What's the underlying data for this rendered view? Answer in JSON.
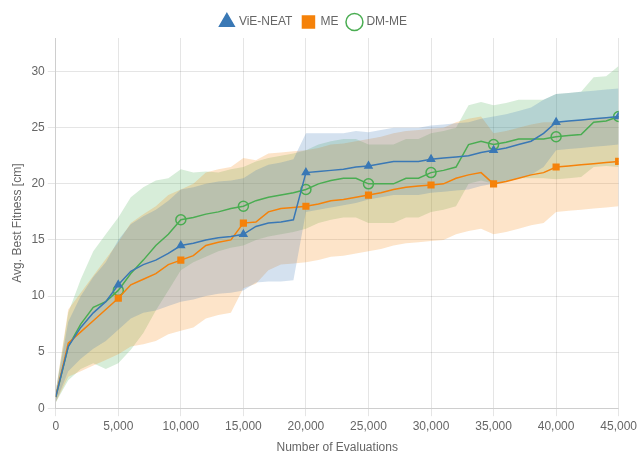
{
  "chart_data": {
    "type": "line",
    "xlabel": "Number of Evaluations",
    "ylabel": "Avg. Best Fitness [cm]",
    "x": [
      0,
      1000,
      2000,
      3000,
      4000,
      5000,
      6000,
      7000,
      8000,
      9000,
      10000,
      11000,
      12000,
      13000,
      14000,
      15000,
      16000,
      17000,
      18000,
      19000,
      20000,
      21000,
      22000,
      23000,
      24000,
      25000,
      26000,
      27000,
      28000,
      29000,
      30000,
      31000,
      32000,
      33000,
      34000,
      35000,
      36000,
      37000,
      38000,
      39000,
      40000,
      41000,
      42000,
      43000,
      44000,
      45000
    ],
    "xlim": [
      0,
      45000
    ],
    "ylim": [
      0,
      33
    ],
    "xticks": [
      0,
      {
        "value": 5000,
        "label": "5,000"
      },
      {
        "value": 10000,
        "label": "10,000"
      },
      {
        "value": 15000,
        "label": "15,000"
      },
      {
        "value": 20000,
        "label": "20,000"
      },
      {
        "value": 25000,
        "label": "25,000"
      },
      {
        "value": 30000,
        "label": "30,000"
      },
      {
        "value": 35000,
        "label": "35,000"
      },
      {
        "value": 40000,
        "label": "40,000"
      },
      {
        "value": 45000,
        "label": "45,000"
      }
    ],
    "yticks": [
      0,
      5,
      10,
      15,
      20,
      25,
      30
    ],
    "grid": true,
    "legend": "top",
    "series": [
      {
        "name": "ViE-NEAT",
        "color": "#3a78b5",
        "marker": "triangle",
        "values": [
          1.0,
          5.5,
          7.2,
          8.5,
          9.5,
          11.0,
          12.2,
          12.8,
          13.2,
          13.8,
          14.5,
          14.7,
          15.0,
          15.2,
          15.3,
          15.5,
          16.2,
          16.5,
          16.6,
          16.8,
          21.0,
          21.1,
          21.2,
          21.3,
          21.5,
          21.6,
          21.8,
          22.0,
          22.0,
          22.0,
          22.2,
          22.3,
          22.4,
          22.5,
          22.8,
          23.0,
          23.2,
          23.5,
          23.8,
          24.5,
          25.5,
          25.6,
          25.7,
          25.8,
          25.9,
          26.0
        ],
        "std": [
          0.5,
          2.2,
          2.8,
          3.2,
          3.5,
          4.0,
          4.2,
          4.3,
          4.5,
          4.7,
          5.0,
          5.0,
          5.0,
          5.0,
          5.0,
          5.0,
          5.0,
          5.2,
          5.3,
          5.4,
          3.5,
          3.4,
          3.3,
          3.2,
          3.2,
          3.0,
          3.0,
          3.0,
          3.0,
          3.0,
          3.0,
          3.0,
          3.0,
          3.0,
          3.0,
          3.0,
          3.0,
          3.0,
          3.0,
          3.0,
          2.5,
          2.5,
          2.5,
          2.5,
          2.5,
          2.5
        ]
      },
      {
        "name": "ME",
        "color": "#f5820a",
        "marker": "square",
        "values": [
          1.0,
          5.8,
          6.8,
          7.8,
          8.8,
          9.8,
          11.0,
          11.5,
          12.0,
          12.8,
          13.2,
          13.6,
          14.5,
          14.8,
          15.0,
          16.5,
          16.6,
          17.5,
          17.8,
          17.9,
          18.0,
          18.2,
          18.5,
          18.6,
          18.8,
          19.0,
          19.2,
          19.5,
          19.7,
          19.8,
          19.9,
          20.0,
          20.5,
          20.8,
          21.0,
          20.0,
          20.2,
          20.5,
          20.8,
          21.0,
          21.5,
          21.6,
          21.7,
          21.8,
          21.9,
          22.0
        ],
        "std": [
          0.5,
          3.0,
          3.5,
          4.0,
          4.5,
          5.0,
          5.5,
          5.8,
          6.0,
          6.2,
          6.3,
          6.4,
          6.5,
          6.5,
          6.5,
          5.8,
          5.5,
          5.2,
          5.0,
          5.0,
          5.0,
          5.0,
          5.0,
          5.0,
          5.0,
          5.0,
          5.0,
          5.0,
          5.0,
          5.0,
          5.0,
          5.0,
          5.0,
          5.0,
          5.0,
          4.5,
          4.5,
          4.5,
          4.5,
          4.5,
          4.0,
          4.0,
          4.0,
          4.0,
          4.0,
          4.0
        ]
      },
      {
        "name": "DM-ME",
        "color": "#4aad52",
        "marker": "circle",
        "values": [
          1.0,
          5.5,
          7.5,
          9.0,
          9.5,
          10.5,
          12.0,
          13.2,
          14.5,
          15.5,
          16.8,
          17.0,
          17.3,
          17.5,
          17.8,
          18.0,
          18.5,
          18.8,
          19.0,
          19.2,
          19.5,
          20.0,
          20.3,
          20.5,
          20.5,
          20.0,
          20.0,
          20.0,
          20.5,
          20.5,
          21.0,
          21.2,
          21.5,
          23.5,
          23.8,
          23.5,
          23.7,
          24.0,
          24.0,
          24.0,
          24.2,
          24.3,
          24.4,
          25.5,
          25.6,
          26.0
        ],
        "std": [
          0.5,
          3.0,
          4.0,
          5.0,
          6.0,
          6.5,
          6.8,
          6.5,
          5.8,
          5.0,
          4.5,
          4.0,
          3.8,
          3.5,
          3.5,
          3.5,
          3.5,
          3.5,
          3.5,
          3.5,
          3.5,
          3.5,
          3.5,
          3.5,
          3.5,
          3.5,
          3.5,
          3.5,
          3.5,
          3.5,
          3.5,
          3.5,
          3.5,
          3.5,
          3.5,
          3.5,
          3.5,
          3.5,
          3.5,
          3.5,
          3.8,
          3.8,
          3.8,
          4.0,
          4.0,
          4.5
        ]
      }
    ]
  }
}
